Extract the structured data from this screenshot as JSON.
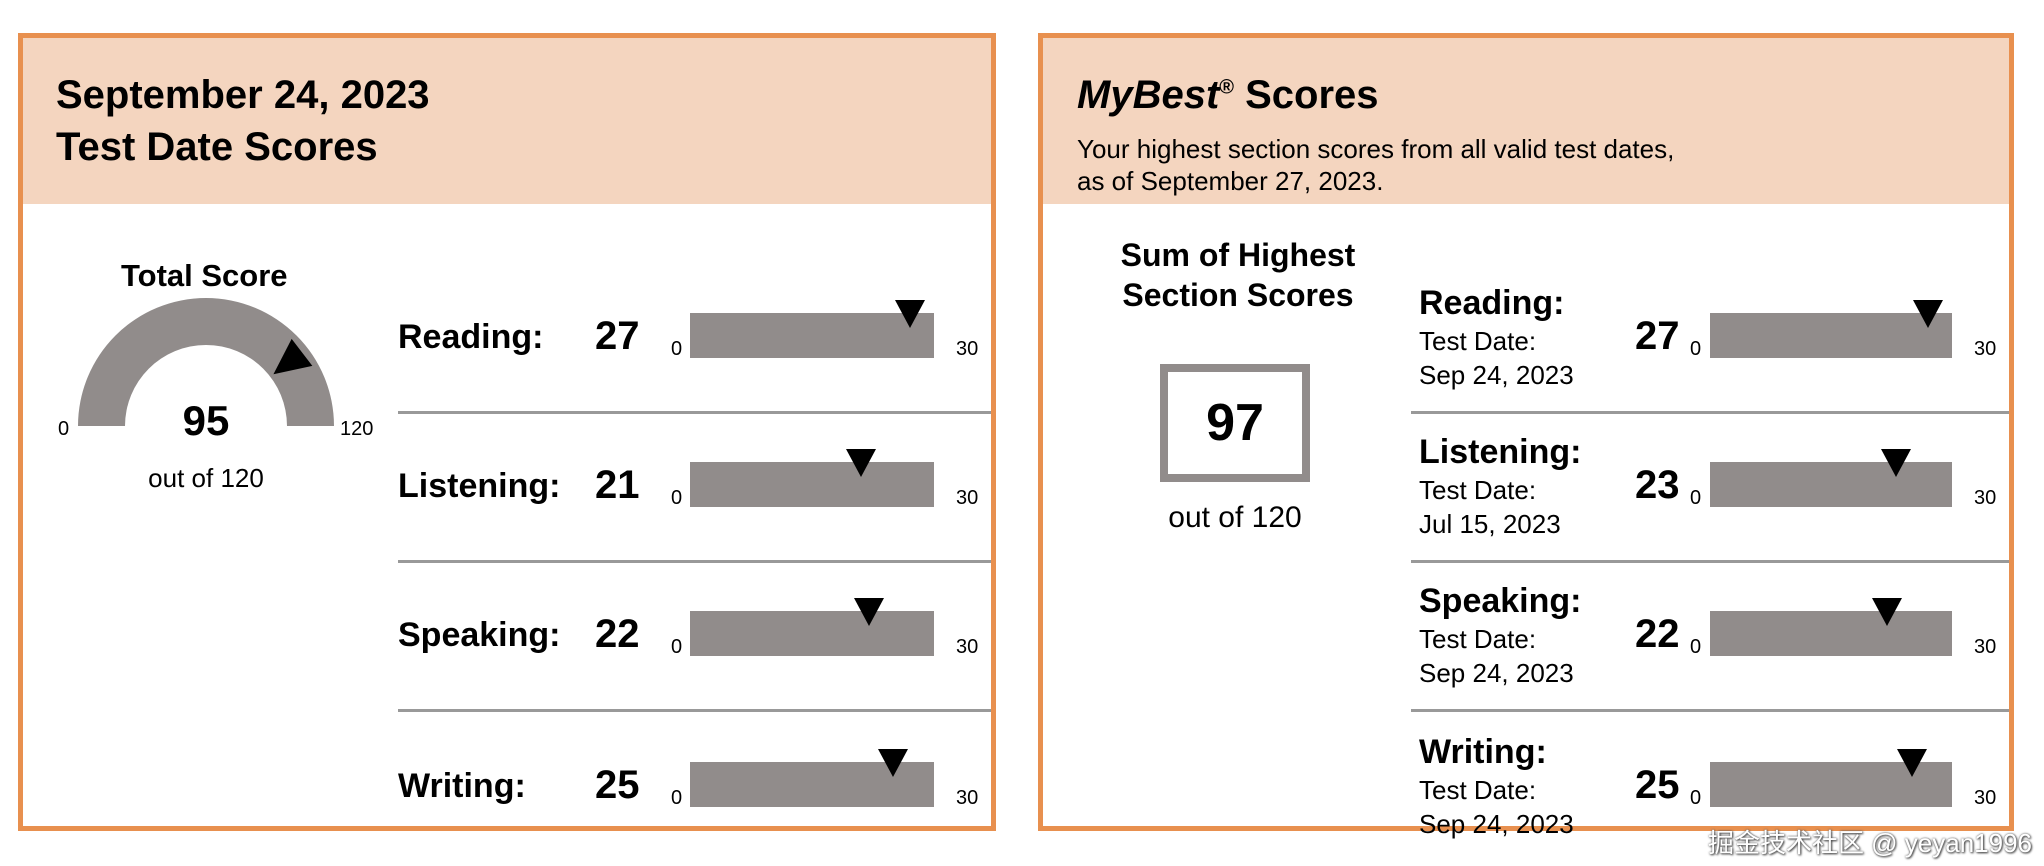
{
  "test_date": {
    "title_line1": "September 24, 2023",
    "title_line2": "Test Date Scores",
    "total": {
      "label": "Total Score",
      "value": 95,
      "max": 120,
      "min_label": "0",
      "max_label": "120",
      "out_of": "out of 120"
    },
    "sections": [
      {
        "label": "Reading:",
        "score": 27,
        "min": "0",
        "max": "30"
      },
      {
        "label": "Listening:",
        "score": 21,
        "min": "0",
        "max": "30"
      },
      {
        "label": "Speaking:",
        "score": 22,
        "min": "0",
        "max": "30"
      },
      {
        "label": "Writing:",
        "score": 25,
        "min": "0",
        "max": "30"
      }
    ]
  },
  "mybest": {
    "title_italic": "MyBest",
    "title_reg": "®",
    "title_rest": " Scores",
    "subtitle_line1": "Your highest section scores from all valid test dates,",
    "subtitle_line2": "as of September 27, 2023.",
    "sum_label_line1": "Sum of Highest",
    "sum_label_line2": "Section Scores",
    "sum_value": "97",
    "out_of": "out of 120",
    "sections": [
      {
        "label": "Reading:",
        "date_label": "Test Date:",
        "date": "Sep 24, 2023",
        "score": 27,
        "min": "0",
        "max": "30"
      },
      {
        "label": "Listening:",
        "date_label": "Test Date:",
        "date": "Jul 15, 2023",
        "score": 23,
        "min": "0",
        "max": "30"
      },
      {
        "label": "Speaking:",
        "date_label": "Test Date:",
        "date": "Sep 24, 2023",
        "score": 22,
        "min": "0",
        "max": "30"
      },
      {
        "label": "Writing:",
        "date_label": "Test Date:",
        "date": "Sep 24, 2023",
        "score": 25,
        "min": "0",
        "max": "30"
      }
    ]
  },
  "watermark": "掘金技术社区 @ yeyan1996",
  "colors": {
    "border": "#E8904F",
    "header_bg": "#F4D5BF",
    "bar": "#918C8B",
    "marker": "#000000"
  }
}
